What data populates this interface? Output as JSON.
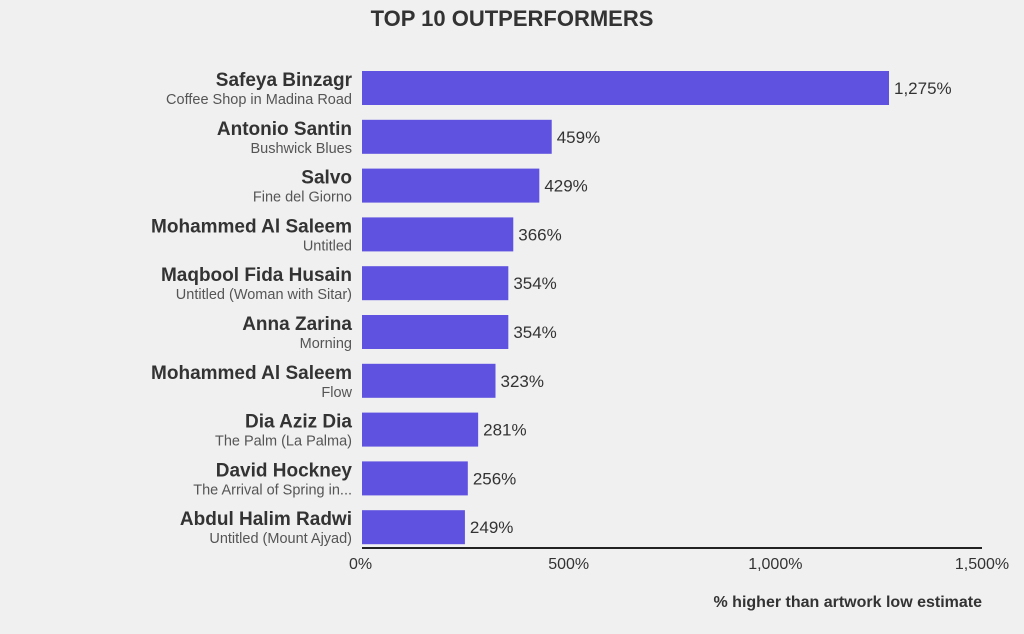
{
  "chart_data": {
    "type": "bar",
    "orientation": "horizontal",
    "title": "TOP 10 OUTPERFORMERS",
    "xlabel": "% higher than artwork low estimate",
    "ylabel": "",
    "xlim": [
      0,
      1500
    ],
    "ticks": [
      0,
      500,
      1000,
      1500
    ],
    "tick_labels": [
      "0%",
      "500%",
      "1,000%",
      "1,500%"
    ],
    "bar_color": "#5f52e0",
    "grid": false,
    "items": [
      {
        "artist": "Safeya Binzagr",
        "work": "Coffee Shop in Madina Road",
        "value": 1275,
        "label": "1,275%"
      },
      {
        "artist": "Antonio Santin",
        "work": "Bushwick Blues",
        "value": 459,
        "label": "459%"
      },
      {
        "artist": "Salvo",
        "work": "Fine del Giorno",
        "value": 429,
        "label": "429%"
      },
      {
        "artist": "Mohammed Al Saleem",
        "work": "Untitled",
        "value": 366,
        "label": "366%"
      },
      {
        "artist": "Maqbool Fida Husain",
        "work": "Untitled (Woman with Sitar)",
        "value": 354,
        "label": "354%"
      },
      {
        "artist": "Anna Zarina",
        "work": "Morning",
        "value": 354,
        "label": "354%"
      },
      {
        "artist": "Mohammed Al Saleem",
        "work": "Flow",
        "value": 323,
        "label": "323%"
      },
      {
        "artist": "Dia Aziz Dia",
        "work": "The Palm (La Palma)",
        "value": 281,
        "label": "281%"
      },
      {
        "artist": "David Hockney",
        "work": "The Arrival of Spring in...",
        "value": 256,
        "label": "256%"
      },
      {
        "artist": "Abdul Halim Radwi",
        "work": "Untitled (Mount Ajyad)",
        "value": 249,
        "label": "249%"
      }
    ]
  }
}
